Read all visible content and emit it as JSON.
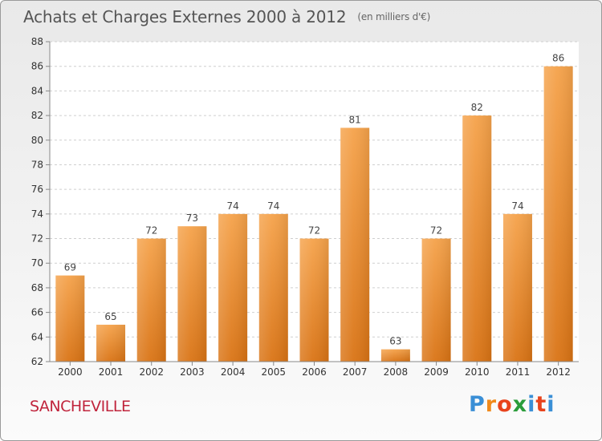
{
  "header": {
    "title": "Achats et Charges Externes 2000 à 2012",
    "unit": "(en milliers d'€)"
  },
  "footer": {
    "commune": "SANCHEVILLE"
  },
  "logo": {
    "text": "Proxiti",
    "letters": [
      {
        "ch": "P",
        "color": "#3a8fd6"
      },
      {
        "ch": "r",
        "color": "#f08a1c"
      },
      {
        "ch": "o",
        "color": "#e8431c"
      },
      {
        "ch": "x",
        "color": "#2a9c3a"
      },
      {
        "ch": "i",
        "color": "#3a8fd6"
      },
      {
        "ch": "t",
        "color": "#e8431c"
      },
      {
        "ch": "i",
        "color": "#3a8fd6"
      }
    ]
  },
  "chart_data": {
    "type": "bar",
    "title": "Achats et Charges Externes 2000 à 2012",
    "subtitle": "(en milliers d'€)",
    "categories": [
      "2000",
      "2001",
      "2002",
      "2003",
      "2004",
      "2005",
      "2006",
      "2007",
      "2008",
      "2009",
      "2010",
      "2011",
      "2012"
    ],
    "values": [
      69,
      65,
      72,
      73,
      74,
      74,
      72,
      81,
      63,
      72,
      82,
      74,
      86
    ],
    "ylim": [
      62,
      88
    ],
    "yticks": [
      62,
      64,
      66,
      68,
      70,
      72,
      74,
      76,
      78,
      80,
      82,
      84,
      86,
      88
    ],
    "grid": true,
    "bar_color": "#f0902e"
  }
}
